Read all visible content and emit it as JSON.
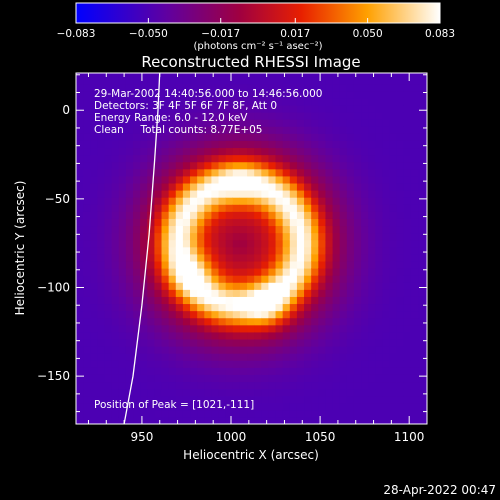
{
  "chart_data": {
    "type": "heatmap",
    "title": "Reconstructed RHESSI Image",
    "xlabel": "Heliocentric X (arcsec)",
    "ylabel": "Heliocentric Y (arcsec)",
    "xlim": [
      913,
      1110
    ],
    "ylim": [
      -177,
      21
    ],
    "x_ticks": [
      {
        "value": 950,
        "label": "950"
      },
      {
        "value": 1000,
        "label": "1000"
      },
      {
        "value": 1050,
        "label": "1050"
      },
      {
        "value": 1100,
        "label": "1100"
      }
    ],
    "y_ticks": [
      {
        "value": 0,
        "label": "0"
      },
      {
        "value": -50,
        "label": "-50"
      },
      {
        "value": -100,
        "label": "-100"
      },
      {
        "value": -150,
        "label": "-150"
      }
    ],
    "colorbar": {
      "min": -0.083,
      "max": 0.083,
      "ticks": [
        {
          "value": -0.083,
          "label": "-0.083"
        },
        {
          "value": -0.05,
          "label": "-0.050"
        },
        {
          "value": -0.017,
          "label": "-0.017"
        },
        {
          "value": 0.017,
          "label": "0.017"
        },
        {
          "value": 0.05,
          "label": "0.050"
        },
        {
          "value": 0.083,
          "label": "0.083"
        }
      ],
      "units": "(photons cm⁻² s⁻¹ asec⁻²)"
    },
    "annotations": [
      "29-Mar-2002 14:40:56.000 to 14:46:56.000",
      "Detectors: 3F 4F 5F 6F 7F 8F, Att 0",
      "Energy Range: 6.0 - 12.0 keV",
      "Clean     Total counts: 8.77E+05"
    ],
    "peak_text": "Position of Peak = [1021,-111]",
    "limb_curve": [
      [
        940,
        -177
      ],
      [
        945,
        -150
      ],
      [
        950,
        -110
      ],
      [
        954,
        -70
      ],
      [
        957,
        -30
      ],
      [
        959,
        0
      ],
      [
        960,
        21
      ]
    ],
    "source": {
      "ring_center": [
        1005,
        -75
      ],
      "ring_radius": 35,
      "ring_width": 12,
      "hot_spots": [
        {
          "x": 1021,
          "y": -111,
          "strength": 0.03
        },
        {
          "x": 980,
          "y": -90,
          "strength": 0.022
        },
        {
          "x": 1005,
          "y": -42,
          "strength": 0.018
        }
      ],
      "halo_strength": 0.05,
      "background": -0.05
    }
  },
  "timestamp": "28-Apr-2022 00:47"
}
